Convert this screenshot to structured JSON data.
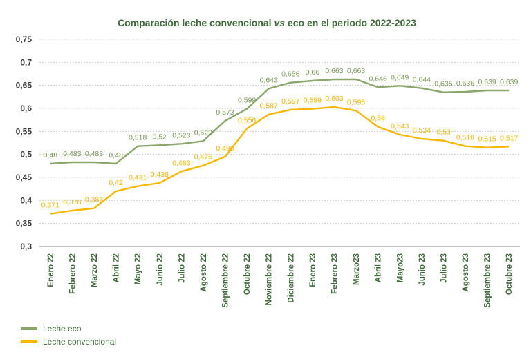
{
  "chart_data": {
    "type": "line",
    "title_pre": "Comparación leche convencional ",
    "title_em": "vs",
    "title_post": " eco en el periodo 2022-2023",
    "categories": [
      "Enero 22",
      "Febrero 22",
      "Marzo 22",
      "Abril 22",
      "Mayo 22",
      "Junio 22",
      "Julio 22",
      "Agosto 22",
      "Septiembre 22",
      "Octubre 22",
      "Noviembre 22",
      "Diciembre 22",
      "Enero 23",
      "Febrero 23",
      "Marzo23",
      "Abril 23",
      "Mayo23",
      "Junio 23",
      "Julio 23",
      "Agosto 23",
      "Septiembre 23",
      "Octubre 23"
    ],
    "yticks": [
      "0,3",
      "0,35",
      "0,4",
      "0,45",
      "0,5",
      "0,55",
      "0,6",
      "0,65",
      "0,7",
      "0,75"
    ],
    "ylim": [
      0.3,
      0.75
    ],
    "grid": "horizontal dotted",
    "legend_position": "bottom-left",
    "series": [
      {
        "name": "Leche eco",
        "color": "#8aa66b",
        "values": [
          0.48,
          0.483,
          0.483,
          0.48,
          0.518,
          0.52,
          0.523,
          0.529,
          0.573,
          0.599,
          0.643,
          0.656,
          0.66,
          0.663,
          0.663,
          0.646,
          0.649,
          0.644,
          0.635,
          0.636,
          0.639,
          0.639
        ],
        "labels": [
          "0,48",
          "0,483",
          "0,483",
          "0,48",
          "0,518",
          "0,52",
          "0,523",
          "0,529",
          "0,573",
          "0,599",
          "0,643",
          "0,656",
          "0,66",
          "0,663",
          "0,663",
          "0,646",
          "0,649",
          "0,644",
          "0,635",
          "0,636",
          "0,639",
          "0,639"
        ]
      },
      {
        "name": "Leche convencional",
        "color": "#f5b700",
        "values": [
          0.371,
          0.378,
          0.383,
          0.42,
          0.431,
          0.438,
          0.463,
          0.476,
          0.495,
          0.556,
          0.587,
          0.597,
          0.599,
          0.603,
          0.595,
          0.56,
          0.543,
          0.534,
          0.53,
          0.518,
          0.515,
          0.517
        ],
        "labels": [
          "0,371",
          "0,378",
          "0,383",
          "0,42",
          "0,431",
          "0,438",
          "0,463",
          "0,476",
          "0,495",
          "0,556",
          "0,587",
          "0,597",
          "0,599",
          "0,603",
          "0,595",
          "0,56",
          "0,543",
          "0,534",
          "0,53",
          "0,518",
          "0,515",
          "0,517"
        ]
      }
    ]
  }
}
